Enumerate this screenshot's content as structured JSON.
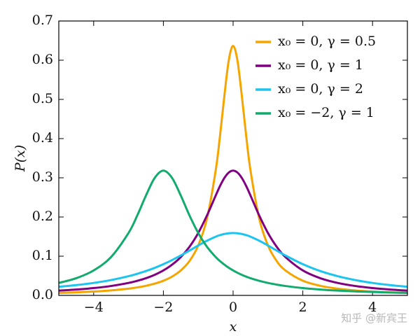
{
  "chart_data": {
    "type": "line",
    "ylabel": "P(x)",
    "xlabel": "x",
    "watermark": "知乎 @新宾王",
    "xlim": [
      -5,
      5
    ],
    "ylim": [
      0,
      0.7
    ],
    "xticks": [
      {
        "value": -4,
        "label": "−4"
      },
      {
        "value": -2,
        "label": "−2"
      },
      0,
      2,
      4
    ],
    "yticks": [
      {
        "value": 0,
        "label": "0.0"
      },
      0.1,
      0.2,
      0.3,
      0.4,
      0.5,
      0.6,
      0.7
    ],
    "legend": "upper right",
    "x": [
      -5,
      -4.5,
      -4,
      -3.5,
      -3,
      -2.75,
      -2.5,
      -2.25,
      -2,
      -1.75,
      -1.5,
      -1.25,
      -1,
      -0.75,
      -0.5,
      -0.375,
      -0.25,
      -0.125,
      0,
      0.125,
      0.25,
      0.375,
      0.5,
      0.75,
      1,
      1.25,
      1.5,
      2,
      2.5,
      3,
      3.5,
      4,
      4.5,
      5
    ],
    "series": [
      {
        "name": "x₀ = 0, γ = 0.5",
        "color": "#f5a500",
        "values": [
          0.0063,
          0.0078,
          0.0098,
          0.0127,
          0.0172,
          0.0204,
          0.0245,
          0.03,
          0.0374,
          0.048,
          0.0637,
          0.0878,
          0.1273,
          0.1959,
          0.3183,
          0.4074,
          0.5093,
          0.5992,
          0.6366,
          0.5992,
          0.5093,
          0.4074,
          0.3183,
          0.1959,
          0.1273,
          0.0878,
          0.0637,
          0.0374,
          0.0245,
          0.0172,
          0.0127,
          0.0098,
          0.0078,
          0.0063
        ]
      },
      {
        "name": "x₀ = 0, γ = 1",
        "color": "#800080",
        "values": [
          0.0122,
          0.015,
          0.0187,
          0.024,
          0.0318,
          0.0372,
          0.0439,
          0.0525,
          0.0637,
          0.0784,
          0.0979,
          0.1242,
          0.1592,
          0.2037,
          0.2546,
          0.2791,
          0.2996,
          0.3134,
          0.3183,
          0.3134,
          0.2996,
          0.2791,
          0.2546,
          0.2037,
          0.1592,
          0.1242,
          0.0979,
          0.0637,
          0.0439,
          0.0318,
          0.024,
          0.0187,
          0.015,
          0.0122
        ]
      },
      {
        "name": "x₀ = 0, γ = 2",
        "color": "#1cc4f0",
        "values": [
          0.022,
          0.0263,
          0.0318,
          0.0392,
          0.049,
          0.0551,
          0.0621,
          0.0702,
          0.0796,
          0.0901,
          0.1019,
          0.1144,
          0.1273,
          0.1395,
          0.1498,
          0.1538,
          0.1567,
          0.1585,
          0.1592,
          0.1585,
          0.1567,
          0.1538,
          0.1498,
          0.1395,
          0.1273,
          0.1144,
          0.1019,
          0.0796,
          0.0621,
          0.049,
          0.0392,
          0.0318,
          0.0263,
          0.022
        ]
      },
      {
        "name": "x₀ = −2, γ = 1",
        "color": "#12ab6e",
        "values": [
          0.0318,
          0.0439,
          0.0637,
          0.0979,
          0.1592,
          0.2037,
          0.2546,
          0.2996,
          0.3183,
          0.2996,
          0.2546,
          0.2037,
          0.1592,
          0.1242,
          0.0979,
          0.0874,
          0.0784,
          0.0705,
          0.0637,
          0.0577,
          0.0525,
          0.0479,
          0.0439,
          0.0372,
          0.0318,
          0.0275,
          0.024,
          0.0187,
          0.015,
          0.0122,
          0.0102,
          0.0086,
          0.0074,
          0.0064
        ]
      }
    ]
  }
}
